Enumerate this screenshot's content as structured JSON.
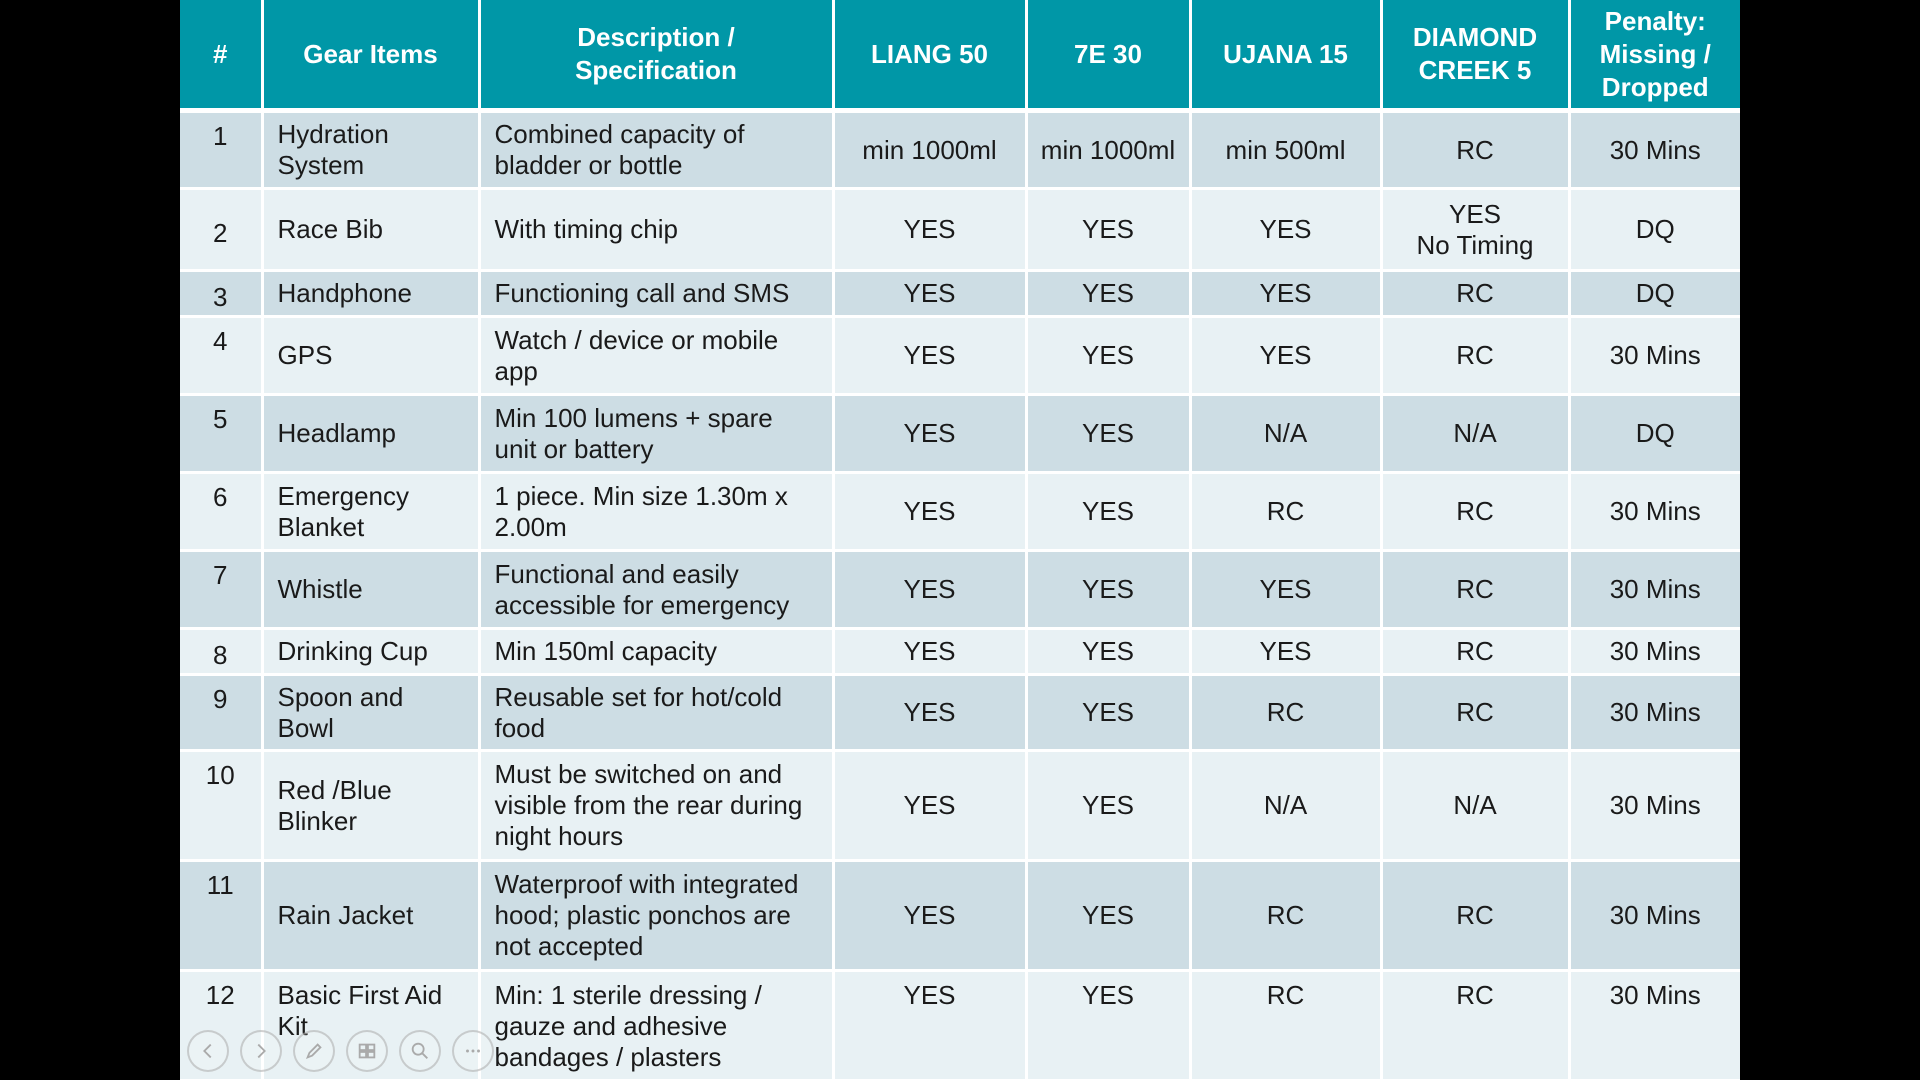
{
  "table": {
    "headers": {
      "num": "#",
      "item": "Gear Items",
      "desc": "Description /\nSpecification",
      "liang": "LIANG 50",
      "seven": "7E 30",
      "ujana": "UJANA 15",
      "diamond": "DIAMOND\nCREEK 5",
      "penalty": "Penalty:\nMissing /\nDropped"
    },
    "rows": [
      {
        "num": "1",
        "item": "Hydration\nSystem",
        "desc": "Combined capacity of\nbladder or bottle",
        "liang": "min 1000ml",
        "seven": "min 1000ml",
        "ujana": "min 500ml",
        "diamond": "RC",
        "penalty": "30 Mins"
      },
      {
        "num": "2",
        "item": "Race Bib",
        "desc": "With timing chip",
        "liang": "YES",
        "seven": "YES",
        "ujana": "YES",
        "diamond": "YES\nNo Timing",
        "penalty": "DQ"
      },
      {
        "num": "3",
        "item": "Handphone",
        "desc": "Functioning call and SMS",
        "liang": "YES",
        "seven": "YES",
        "ujana": "YES",
        "diamond": "RC",
        "penalty": "DQ"
      },
      {
        "num": "4",
        "item": "GPS",
        "desc": "Watch / device or mobile\napp",
        "liang": "YES",
        "seven": "YES",
        "ujana": "YES",
        "diamond": "RC",
        "penalty": "30 Mins"
      },
      {
        "num": "5",
        "item": "Headlamp",
        "desc": "Min 100 lumens + spare\nunit or battery",
        "liang": "YES",
        "seven": "YES",
        "ujana": "N/A",
        "diamond": "N/A",
        "penalty": "DQ"
      },
      {
        "num": "6",
        "item": "Emergency\nBlanket",
        "desc": "1 piece. Min size 1.30m x\n2.00m",
        "liang": "YES",
        "seven": "YES",
        "ujana": "RC",
        "diamond": "RC",
        "penalty": "30 Mins"
      },
      {
        "num": "7",
        "item": "Whistle",
        "desc": "Functional and easily\naccessible for emergency",
        "liang": "YES",
        "seven": "YES",
        "ujana": "YES",
        "diamond": "RC",
        "penalty": "30 Mins"
      },
      {
        "num": "8",
        "item": "Drinking Cup",
        "desc": "Min 150ml capacity",
        "liang": "YES",
        "seven": "YES",
        "ujana": "YES",
        "diamond": "RC",
        "penalty": "30 Mins"
      },
      {
        "num": "9",
        "item": "Spoon and\nBowl",
        "desc": "Reusable set for hot/cold\nfood",
        "liang": "YES",
        "seven": "YES",
        "ujana": "RC",
        "diamond": "RC",
        "penalty": "30 Mins"
      },
      {
        "num": "10",
        "item": "Red /Blue\nBlinker",
        "desc": "Must be switched on and\nvisible from the rear during\nnight hours",
        "liang": "YES",
        "seven": "YES",
        "ujana": "N/A",
        "diamond": "N/A",
        "penalty": "30 Mins"
      },
      {
        "num": "11",
        "item": "Rain Jacket",
        "desc": "Waterproof with integrated\nhood; plastic ponchos are\nnot accepted",
        "liang": "YES",
        "seven": "YES",
        "ujana": "RC",
        "diamond": "RC",
        "penalty": "30 Mins"
      },
      {
        "num": "12",
        "item": "Basic First Aid\nKit",
        "desc": "Min: 1 sterile dressing /\ngauze and adhesive\nbandages / plasters",
        "liang": "YES",
        "seven": "YES",
        "ujana": "RC",
        "diamond": "RC",
        "penalty": "30 Mins"
      }
    ]
  },
  "nav": {
    "icons": [
      "previous-icon",
      "next-icon",
      "pen-icon",
      "slides-grid-icon",
      "zoom-icon",
      "more-icon"
    ]
  },
  "colors": {
    "header_bg": "#0097a7",
    "row_dark": "#cddde4",
    "row_light": "#e8f1f4"
  }
}
